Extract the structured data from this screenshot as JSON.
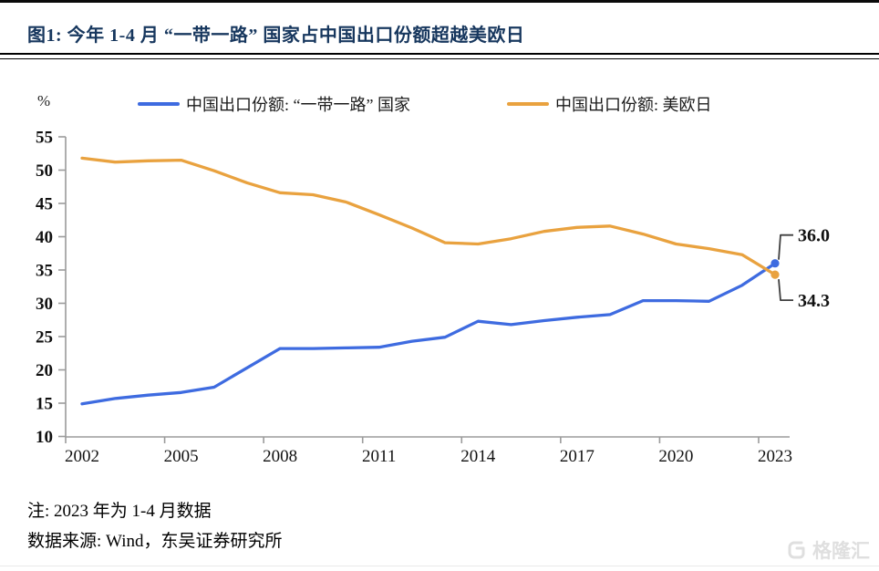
{
  "header": {
    "title": "图1:  今年 1-4 月 “一带一路” 国家占中国出口份额超越美欧日"
  },
  "notes": {
    "note": "注: 2023 年为 1-4 月数据",
    "source": "数据来源: Wind，东吴证券研究所"
  },
  "watermark": {
    "brand": "格隆汇"
  },
  "colors": {
    "title_navy": "#17375e",
    "axis_gray": "#9b9b9b",
    "callout_gray": "#3f3f3f",
    "watermark_gray": "#dfdfdf"
  },
  "chart_data": {
    "type": "line",
    "title": "今年 1-4 月 “一带一路” 国家占中国出口份额超越美欧日",
    "unit_label": "%",
    "x": [
      2002,
      2003,
      2004,
      2005,
      2006,
      2007,
      2008,
      2009,
      2010,
      2011,
      2012,
      2013,
      2014,
      2015,
      2016,
      2017,
      2018,
      2019,
      2020,
      2021,
      2022,
      2023
    ],
    "x_tick_labels": [
      "2002",
      "2005",
      "2008",
      "2011",
      "2014",
      "2017",
      "2020",
      "2023"
    ],
    "ylim": [
      10,
      55
    ],
    "ytick_step": 5,
    "grid": false,
    "legend_position": "top",
    "series": [
      {
        "name": "中国出口份额: “一带一路” 国家",
        "color": "#3e6be0",
        "values": [
          14.9,
          15.7,
          16.2,
          16.6,
          17.4,
          20.3,
          23.2,
          23.2,
          23.3,
          23.4,
          24.3,
          24.9,
          27.3,
          26.8,
          27.4,
          27.9,
          28.3,
          30.4,
          30.4,
          30.3,
          32.7,
          36.0
        ]
      },
      {
        "name": "中国出口份额: 美欧日",
        "color": "#e9a23f",
        "values": [
          51.8,
          51.2,
          51.4,
          51.5,
          49.9,
          48.1,
          46.6,
          46.3,
          45.2,
          43.3,
          41.3,
          39.1,
          38.9,
          39.7,
          40.8,
          41.4,
          41.6,
          40.4,
          38.9,
          38.2,
          37.3,
          34.3
        ]
      }
    ],
    "end_annotations": [
      {
        "series": 0,
        "label": "36.0",
        "direction": "up"
      },
      {
        "series": 1,
        "label": "34.3",
        "direction": "down"
      }
    ]
  }
}
